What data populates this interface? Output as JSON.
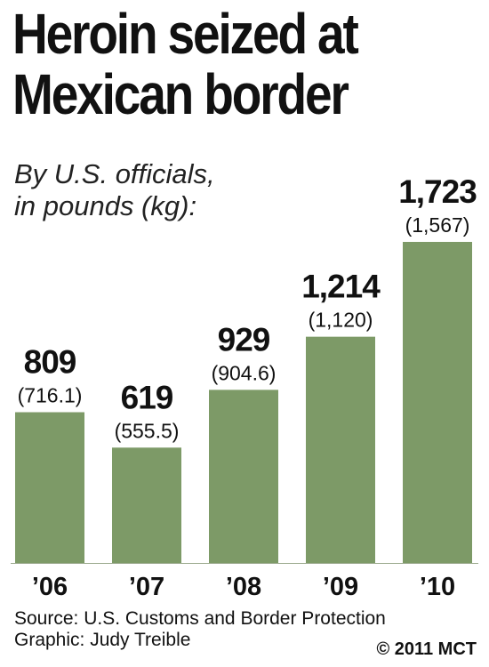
{
  "header": {
    "title_line1": "Heroin seized at",
    "title_line2": "Mexican border",
    "subtitle_line1": "By U.S. officials,",
    "subtitle_line2": "in pounds (kg):"
  },
  "chart_data": {
    "type": "bar",
    "title": "Heroin seized at Mexican border",
    "subtitle": "By U.S. officials, in pounds (kg):",
    "categories": [
      "’06",
      "’07",
      "’08",
      "’09",
      "’10"
    ],
    "series": [
      {
        "values": [
          809,
          619,
          929,
          1214,
          1723
        ],
        "value_labels": [
          "809",
          "619",
          "929",
          "1,214",
          "1,723"
        ],
        "secondary_labels": [
          "(716.1)",
          "(555.5)",
          "(904.6)",
          "(1,120)",
          "(1,567)"
        ],
        "secondary_values_kg": [
          716.1,
          555.5,
          904.6,
          1120,
          1567
        ]
      }
    ],
    "ylim": [
      0,
      1723
    ],
    "grid": false,
    "bar_color": "#7d9a67"
  },
  "footer": {
    "source": "Source: U.S. Customs and Border Protection",
    "credit": "Graphic: Judy Treible",
    "copyright": "© 2011 MCT"
  }
}
